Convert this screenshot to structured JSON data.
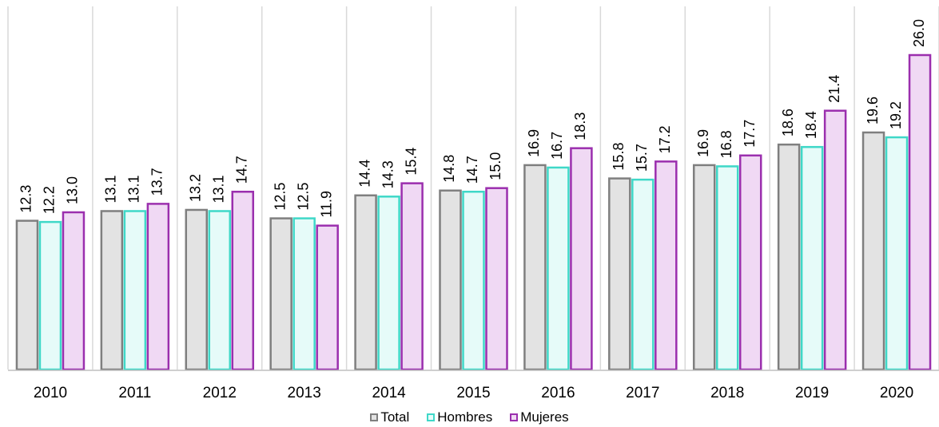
{
  "chart_data": {
    "type": "bar",
    "title": "",
    "xlabel": "",
    "ylabel": "",
    "categories": [
      "2010",
      "2011",
      "2012",
      "2013",
      "2014",
      "2015",
      "2016",
      "2017",
      "2018",
      "2019",
      "2020"
    ],
    "series": [
      {
        "name": "Total",
        "fill": "#e3e3e3",
        "stroke": "#7f7f7f",
        "values": [
          12.3,
          13.1,
          13.2,
          12.5,
          14.4,
          14.8,
          16.9,
          15.8,
          16.9,
          18.6,
          19.6
        ],
        "labels": [
          "12.3",
          "13.1",
          "13.2",
          "12.5",
          "14.4",
          "14.8",
          "16.9",
          "15.8",
          "16.9",
          "18.6",
          "19.6"
        ]
      },
      {
        "name": "Hombres",
        "fill": "#e6fbf9",
        "stroke": "#3fd8c8",
        "values": [
          12.2,
          13.1,
          13.1,
          12.5,
          14.3,
          14.7,
          16.7,
          15.7,
          16.8,
          18.4,
          19.2
        ],
        "labels": [
          "12.2",
          "13.1",
          "13.1",
          "12.5",
          "14.3",
          "14.7",
          "16.7",
          "15.7",
          "16.8",
          "18.4",
          "19.2"
        ]
      },
      {
        "name": "Mujeres",
        "fill": "#f0d9f4",
        "stroke": "#9b2fae",
        "values": [
          13.0,
          13.7,
          14.7,
          11.9,
          15.4,
          15.0,
          18.3,
          17.2,
          17.7,
          21.4,
          26.0
        ],
        "labels": [
          "13.0",
          "13.7",
          "14.7",
          "11.9",
          "15.4",
          "15.0",
          "18.3",
          "17.2",
          "17.7",
          "21.4",
          "26.0"
        ]
      }
    ],
    "ylim": [
      0,
      26.5
    ],
    "grid": "vertical separators",
    "legend_position": "bottom-center",
    "separator_color": "#d9d9d9",
    "axis_color": "#bfbfbf"
  }
}
